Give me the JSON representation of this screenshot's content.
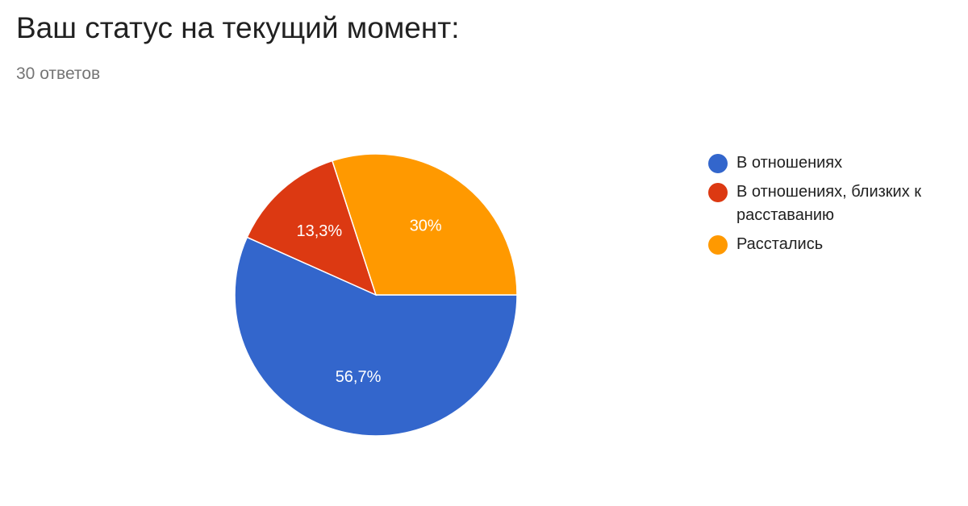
{
  "question": {
    "title": "Ваш статус на текущий момент:",
    "response_count": "30 ответов"
  },
  "chart_data": {
    "type": "pie",
    "categories": [
      "В отношениях",
      "В отношениях, близких к расставанию",
      "Расстались"
    ],
    "values": [
      56.7,
      13.3,
      30
    ],
    "value_labels": [
      "56,7%",
      "13,3%",
      "30%"
    ],
    "colors": [
      "#3366cc",
      "#dc3912",
      "#ff9900"
    ],
    "legend_position": "right"
  }
}
